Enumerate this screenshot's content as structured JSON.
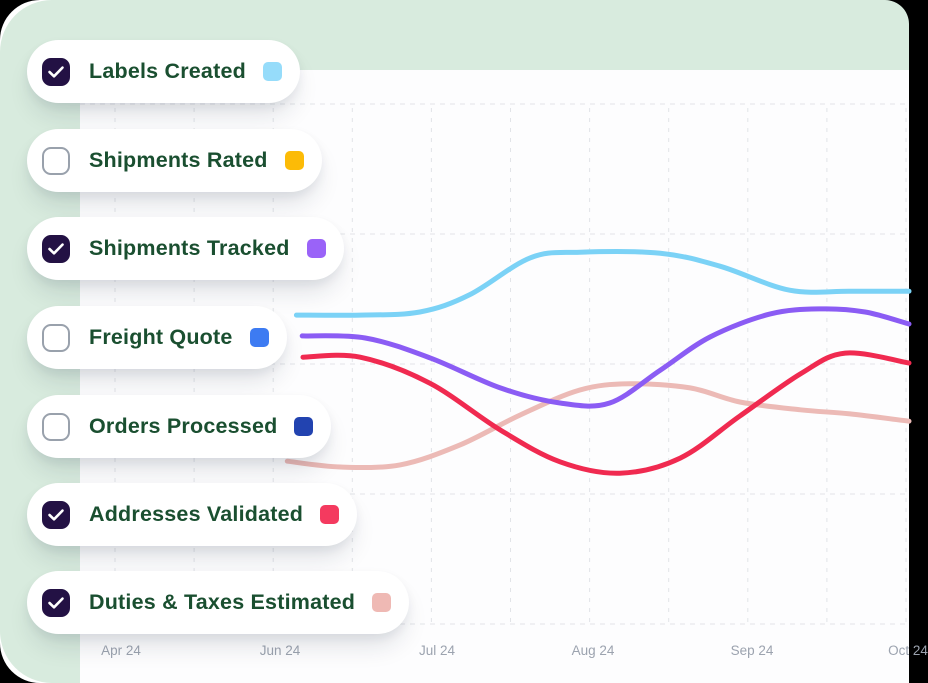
{
  "legend": {
    "items": [
      {
        "label": "Labels Created",
        "checked": true,
        "swatch_color": "#96DCFA"
      },
      {
        "label": "Shipments Rated",
        "checked": false,
        "swatch_color": "#FCBB07"
      },
      {
        "label": "Shipments Tracked",
        "checked": true,
        "swatch_color": "#9A63F8"
      },
      {
        "label": "Freight Quote",
        "checked": false,
        "swatch_color": "#3D7BF2"
      },
      {
        "label": "Orders Processed",
        "checked": false,
        "swatch_color": "#2243B0"
      },
      {
        "label": "Addresses Validated",
        "checked": true,
        "swatch_color": "#F43A5F"
      },
      {
        "label": "Duties & Taxes Estimated",
        "checked": true,
        "swatch_color": "#EFB9B4"
      }
    ]
  },
  "chart_data": {
    "type": "line",
    "title": "",
    "xlabel": "",
    "ylabel": "",
    "x_ticks": [
      "Apr 24",
      "Jun 24",
      "Jul 24",
      "Aug 24",
      "Sep 24",
      "Oct 24"
    ],
    "ylim": [
      0,
      100
    ],
    "grid": "dashed",
    "legend_position": "left-overlay",
    "note": "No y-axis labels shown; values are relative 0-100 estimates. Only checked legend series are plotted. Series listed in draw order (first = bottom layer). Point format [x_percent_of_plot_width, value].",
    "series": [
      {
        "name": "Duties & Taxes Estimated",
        "color": "#ECBAB6",
        "stroke_width": 5,
        "points": [
          [
            25.0,
            31.3
          ],
          [
            31.4,
            30.2
          ],
          [
            38.6,
            30.6
          ],
          [
            45.8,
            34.4
          ],
          [
            53.1,
            40.2
          ],
          [
            60.3,
            45.0
          ],
          [
            66.3,
            46.2
          ],
          [
            73.6,
            45.4
          ],
          [
            79.6,
            42.7
          ],
          [
            86.9,
            41.2
          ],
          [
            92.9,
            40.4
          ],
          [
            100,
            39.0
          ]
        ]
      },
      {
        "name": "Labels Created",
        "color": "#7BD2F6",
        "stroke_width": 5,
        "points": [
          [
            26.1,
            59.4
          ],
          [
            33.8,
            59.4
          ],
          [
            41.0,
            60.0
          ],
          [
            47.0,
            63.3
          ],
          [
            54.3,
            70.4
          ],
          [
            60.3,
            71.5
          ],
          [
            70.0,
            71.3
          ],
          [
            77.2,
            68.8
          ],
          [
            85.6,
            64.2
          ],
          [
            92.9,
            64.0
          ],
          [
            100,
            64.0
          ]
        ]
      },
      {
        "name": "Shipments Tracked",
        "color": "#8B5CF4",
        "stroke_width": 5,
        "points": [
          [
            26.8,
            55.4
          ],
          [
            34.4,
            55.0
          ],
          [
            42.2,
            51.2
          ],
          [
            50.7,
            45.4
          ],
          [
            57.9,
            42.5
          ],
          [
            63.9,
            42.5
          ],
          [
            70.0,
            48.8
          ],
          [
            76.0,
            55.2
          ],
          [
            83.2,
            59.6
          ],
          [
            89.3,
            60.6
          ],
          [
            94.7,
            60.0
          ],
          [
            100,
            57.7
          ]
        ]
      },
      {
        "name": "Addresses Validated",
        "color": "#F02A50",
        "stroke_width": 5,
        "points": [
          [
            26.9,
            51.3
          ],
          [
            33.8,
            51.3
          ],
          [
            42.2,
            46.3
          ],
          [
            50.7,
            37.3
          ],
          [
            57.9,
            31.2
          ],
          [
            65.1,
            29.0
          ],
          [
            72.4,
            31.9
          ],
          [
            79.6,
            40.0
          ],
          [
            86.9,
            48.1
          ],
          [
            92.3,
            52.1
          ],
          [
            100,
            50.2
          ]
        ]
      }
    ]
  },
  "colors": {
    "mint_background": "#D8EBDE",
    "chart_background": "#FDFDFE",
    "gridline": "#E2E4E8",
    "tick_text": "#9CA3AF",
    "legend_text": "#1A4F30",
    "checkbox_checked": "#231144",
    "checkbox_border": "#99A1AC",
    "pill_background": "#FFFFFF"
  }
}
